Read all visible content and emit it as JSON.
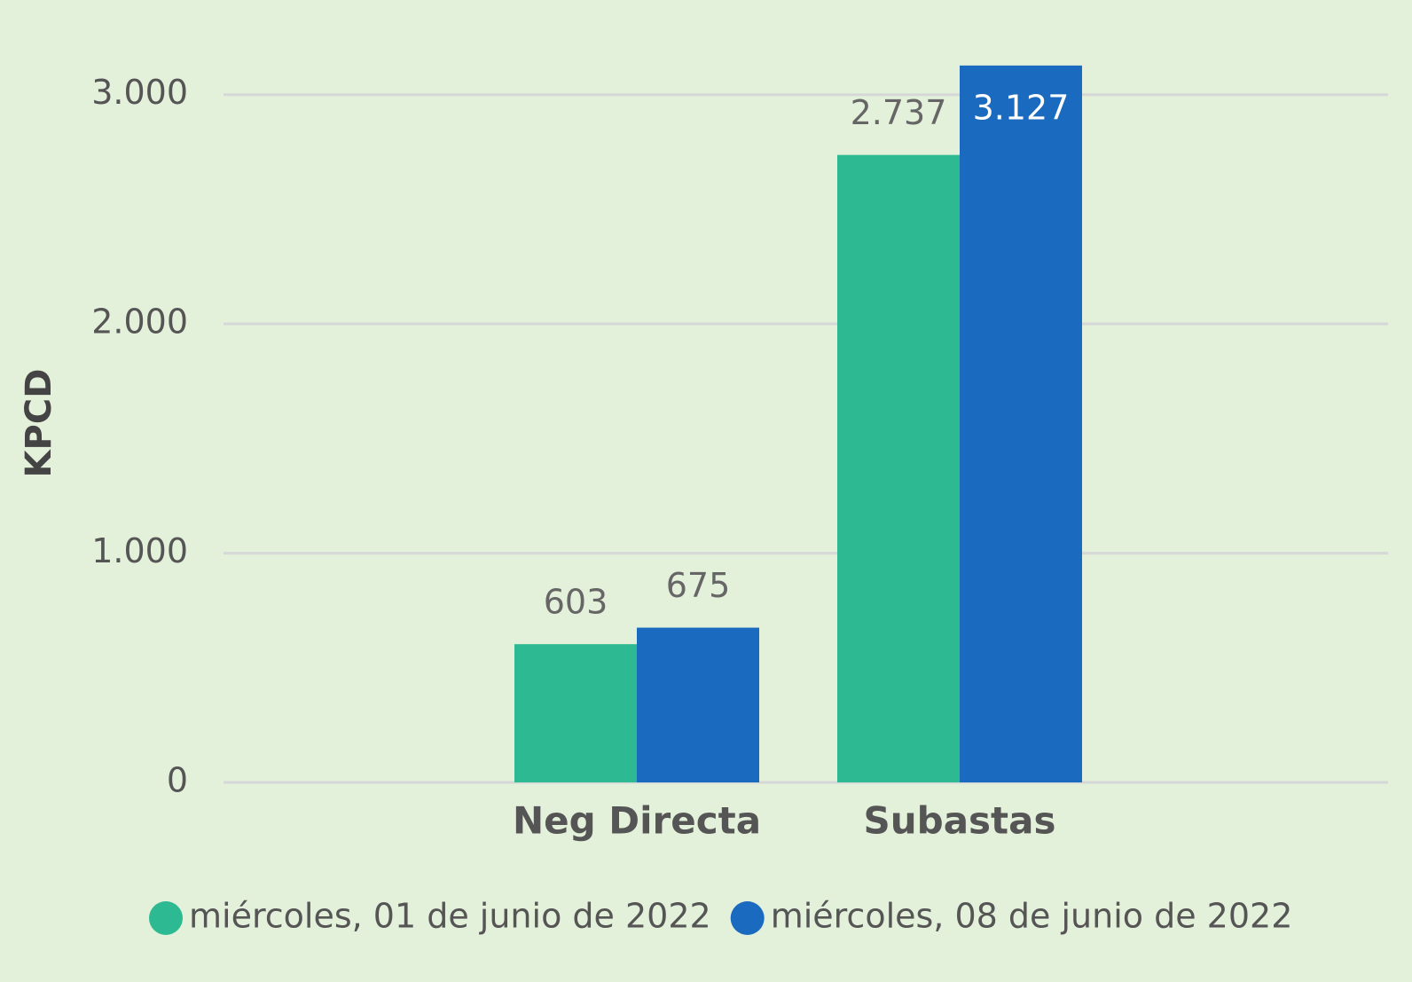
{
  "chart_data": {
    "type": "bar",
    "y_label": "KPCD",
    "categories": [
      "Neg Directa",
      "Subastas"
    ],
    "series": [
      {
        "name": "miércoles, 01 de junio de 2022",
        "color": "#2db992",
        "values": [
          603,
          2737
        ],
        "value_labels": [
          "603",
          "2.737"
        ]
      },
      {
        "name": "miércoles, 08 de junio de 2022",
        "color": "#1a6bbf",
        "values": [
          675,
          3127
        ],
        "value_labels": [
          "675",
          "3.127"
        ]
      }
    ],
    "ylim": [
      0,
      3200
    ],
    "yticks": [
      0,
      {
        "value": 1000,
        "label": "1.000"
      },
      {
        "value": 2000,
        "label": "2.000"
      },
      {
        "value": 3000,
        "label": "3.000"
      }
    ],
    "grid": true,
    "legend": "bottom"
  }
}
